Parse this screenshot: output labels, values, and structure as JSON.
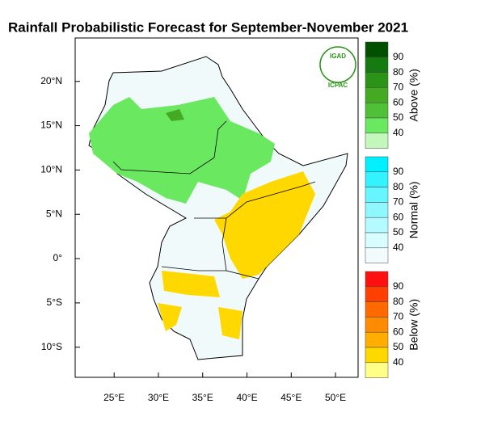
{
  "map": {
    "title": "Rainfall Probabilistic Forecast for September-November 2021",
    "logo": {
      "top": "IGAD",
      "bottom": "ICPAC"
    },
    "xlim": [
      20.6,
      52.55
    ],
    "ylim": [
      -13.4,
      24.9
    ],
    "xticks": [
      {
        "value": 25,
        "label": "25°E"
      },
      {
        "value": 30,
        "label": "30°E"
      },
      {
        "value": 35,
        "label": "35°E"
      },
      {
        "value": 40,
        "label": "40°E"
      },
      {
        "value": 45,
        "label": "45°E"
      },
      {
        "value": 50,
        "label": "50°E"
      }
    ],
    "yticks": [
      {
        "value": 20,
        "label": "20°N"
      },
      {
        "value": 15,
        "label": "15°N"
      },
      {
        "value": 10,
        "label": "10°N"
      },
      {
        "value": 5,
        "label": "5°N"
      },
      {
        "value": 0,
        "label": "0°"
      },
      {
        "value": -5,
        "label": "5°S"
      },
      {
        "value": -10,
        "label": "10°S"
      }
    ],
    "colorbars": [
      {
        "title": "Above (%)",
        "levels": [
          40,
          50,
          60,
          70,
          80,
          90
        ],
        "colors": [
          "#005000",
          "#157a10",
          "#2b9418",
          "#44aa22",
          "#50c038",
          "#6ae860",
          "#c4f7bc"
        ]
      },
      {
        "title": "Normal (%)",
        "levels": [
          40,
          50,
          60,
          70,
          80,
          90
        ],
        "colors": [
          "#00f0ff",
          "#33f3ff",
          "#66f6ff",
          "#8ff8ff",
          "#b3fbff",
          "#d8fdff",
          "#f2fbfb"
        ]
      },
      {
        "title": "Below (%)",
        "levels": [
          40,
          50,
          60,
          70,
          80,
          90
        ],
        "colors": [
          "#ff1010",
          "#ff4000",
          "#ff6a00",
          "#ff8c00",
          "#ffae00",
          "#ffd800",
          "#ffff88"
        ]
      }
    ]
  }
}
